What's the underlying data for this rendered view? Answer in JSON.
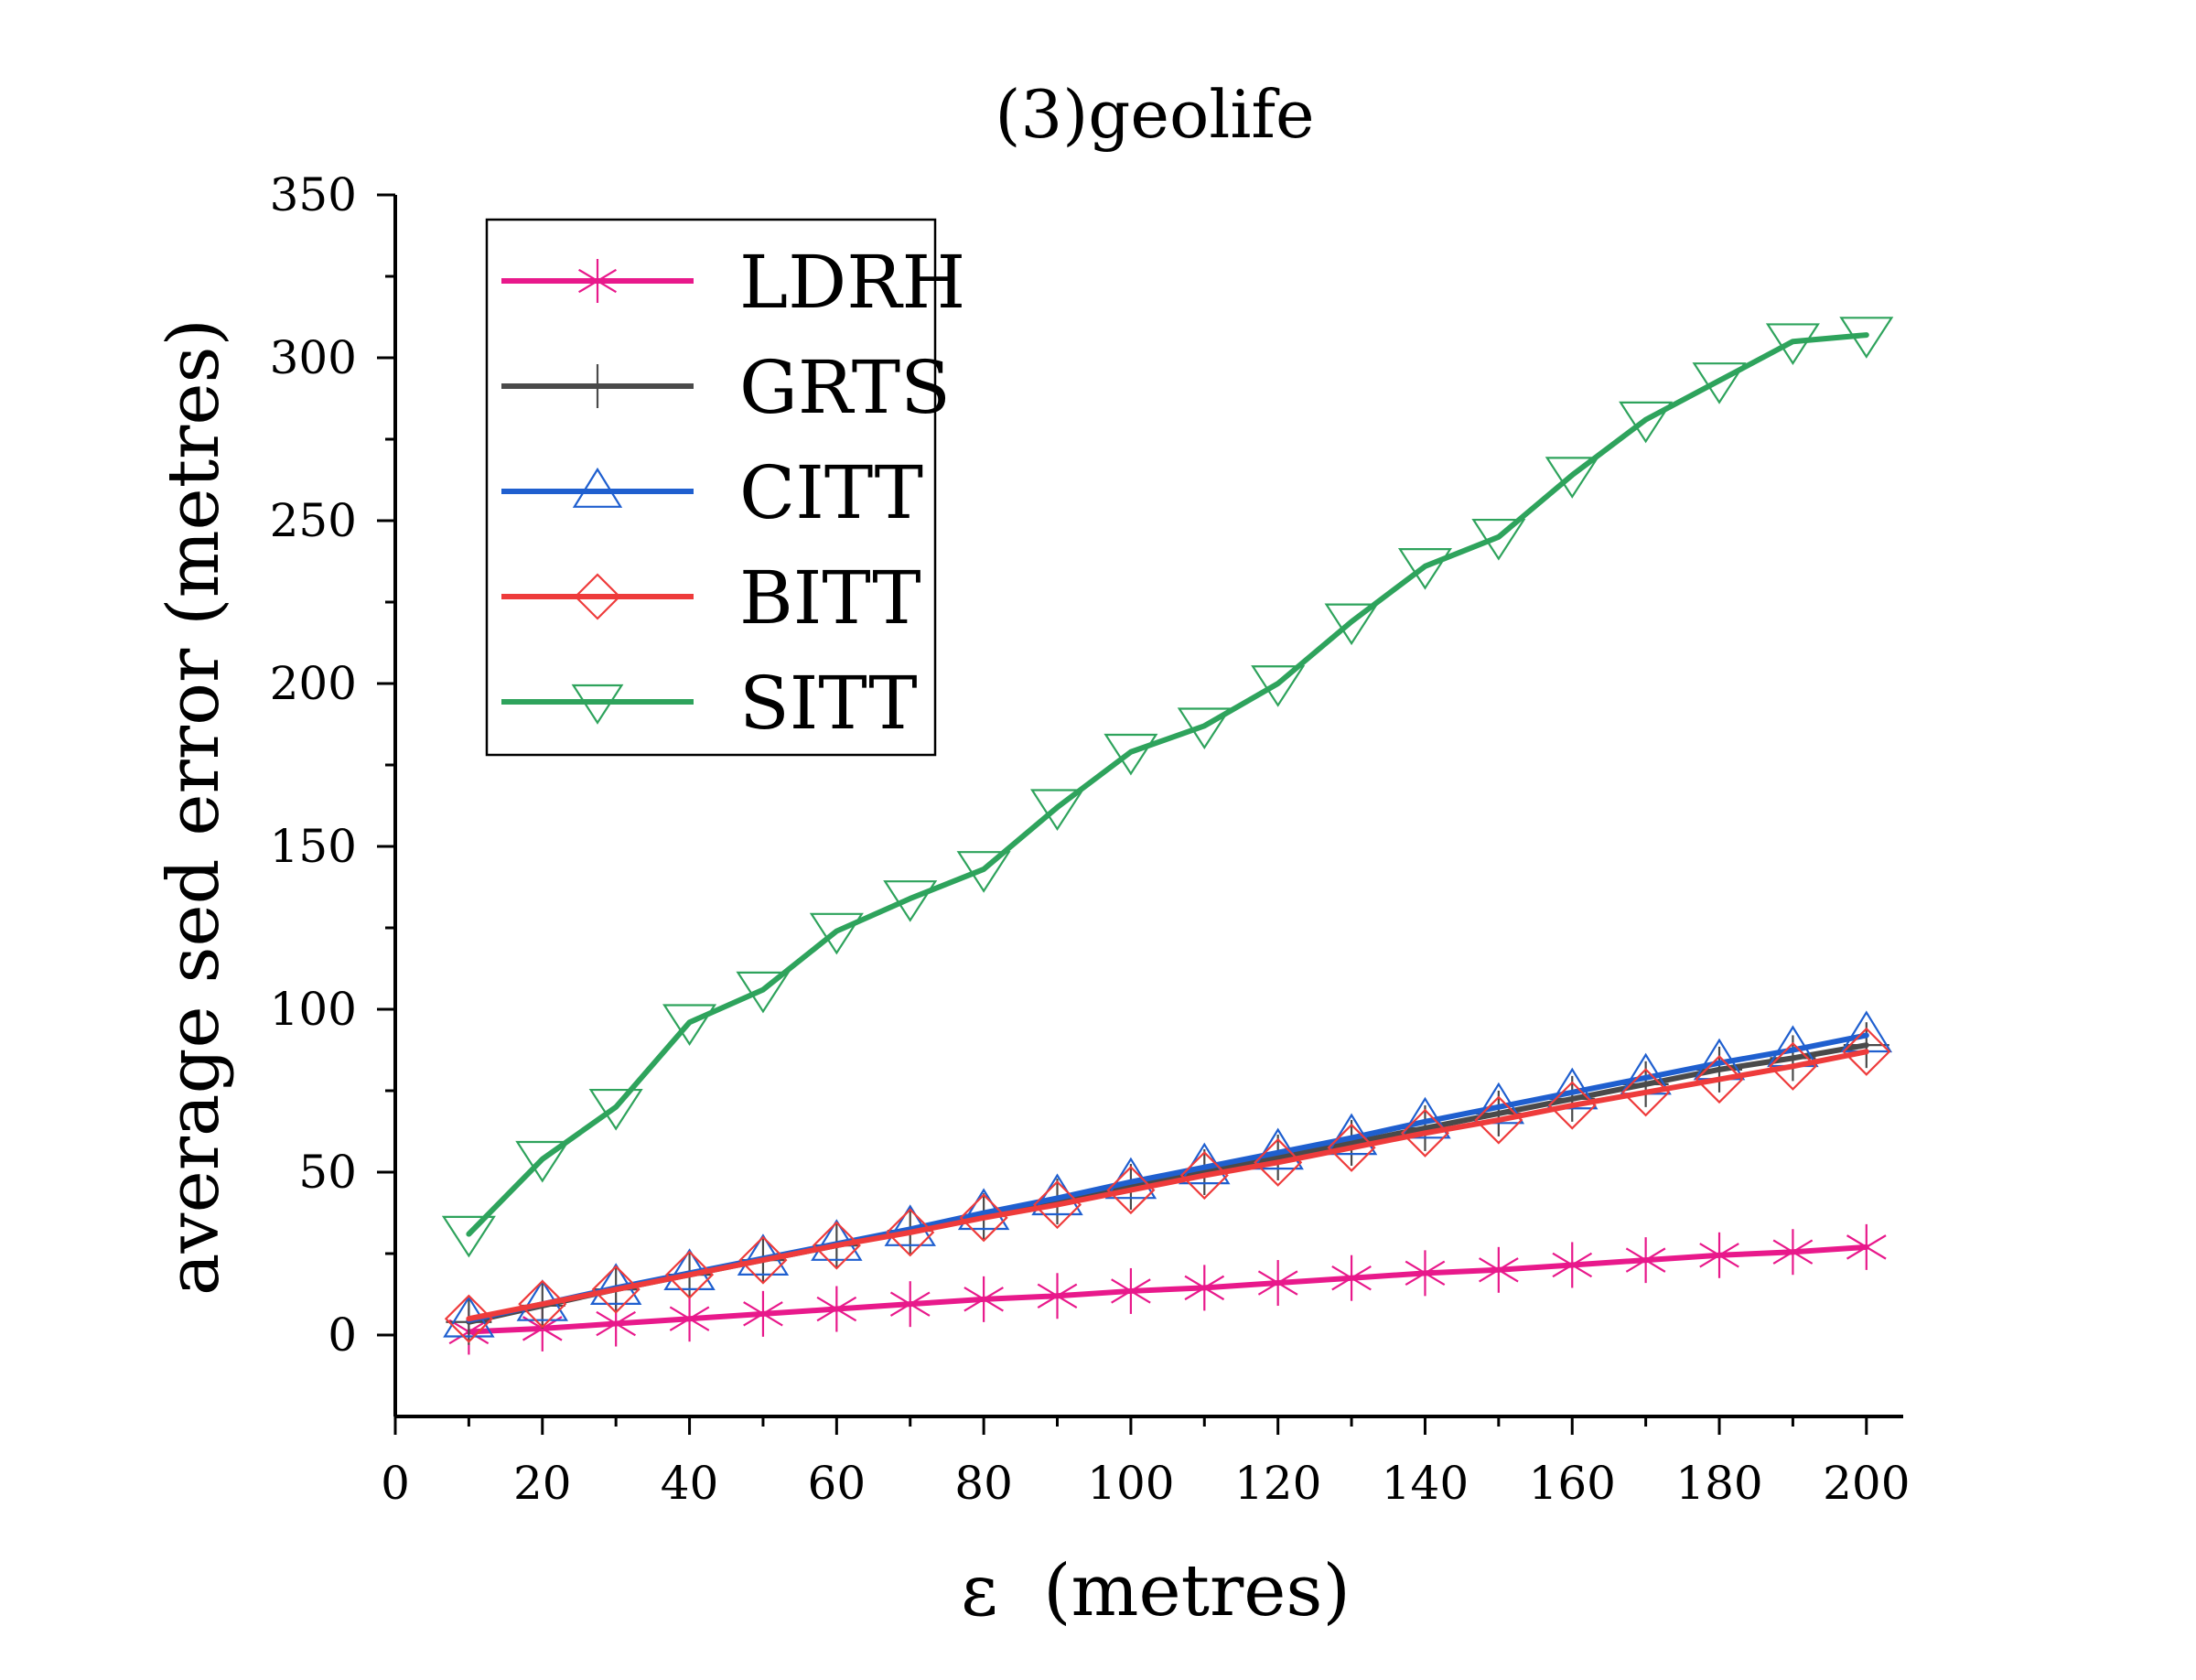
{
  "chart_data": {
    "type": "line",
    "title": "(3)geolife",
    "xlabel": "ε  (metres)",
    "ylabel": "average sed error (metres)",
    "xlim": [
      0,
      205
    ],
    "ylim": [
      -25,
      350
    ],
    "xticks": [
      0,
      20,
      40,
      60,
      80,
      100,
      120,
      140,
      160,
      180,
      200
    ],
    "yticks": [
      0,
      50,
      100,
      150,
      200,
      250,
      300,
      350
    ],
    "grid": false,
    "legend_position": "top-left",
    "x": [
      10,
      20,
      30,
      40,
      50,
      60,
      70,
      80,
      90,
      100,
      110,
      120,
      130,
      140,
      150,
      160,
      170,
      180,
      190,
      200
    ],
    "series": [
      {
        "name": "LDRH",
        "color": "#e8198b",
        "marker": "asterisk",
        "values": [
          1,
          2,
          3.5,
          5,
          6.5,
          8,
          9.5,
          11,
          12,
          13.5,
          14.5,
          16,
          17.5,
          19,
          20,
          21.5,
          23,
          24.5,
          25.5,
          27
        ]
      },
      {
        "name": "GRTS",
        "color": "#4a4a4a",
        "marker": "plus",
        "values": [
          4,
          9,
          14,
          18.5,
          23,
          27.5,
          32,
          36.5,
          41,
          45.5,
          50,
          54.5,
          59,
          63.5,
          68,
          72.5,
          77,
          81.5,
          85,
          89
        ]
      },
      {
        "name": "CITT",
        "color": "#1f5fcf",
        "marker": "triangle-up",
        "values": [
          4.5,
          9.5,
          14.5,
          19,
          23.5,
          28,
          32.5,
          37.5,
          42,
          47,
          51.5,
          56,
          60.5,
          65.5,
          70,
          74.5,
          79,
          83.5,
          87.5,
          92
        ]
      },
      {
        "name": "BITT",
        "color": "#ee3b3b",
        "marker": "diamond",
        "values": [
          5,
          9.5,
          14,
          18.5,
          23,
          27.5,
          31.5,
          36,
          40,
          44.5,
          49,
          53,
          57.5,
          62,
          66,
          70.5,
          74.5,
          78.5,
          82.5,
          87
        ]
      },
      {
        "name": "SITT",
        "color": "#2ea35c",
        "marker": "triangle-down",
        "values": [
          31,
          54,
          70,
          96,
          106,
          124,
          134,
          143,
          162,
          179,
          187,
          200,
          219,
          236,
          245,
          264,
          281,
          293,
          305,
          307
        ]
      }
    ]
  }
}
